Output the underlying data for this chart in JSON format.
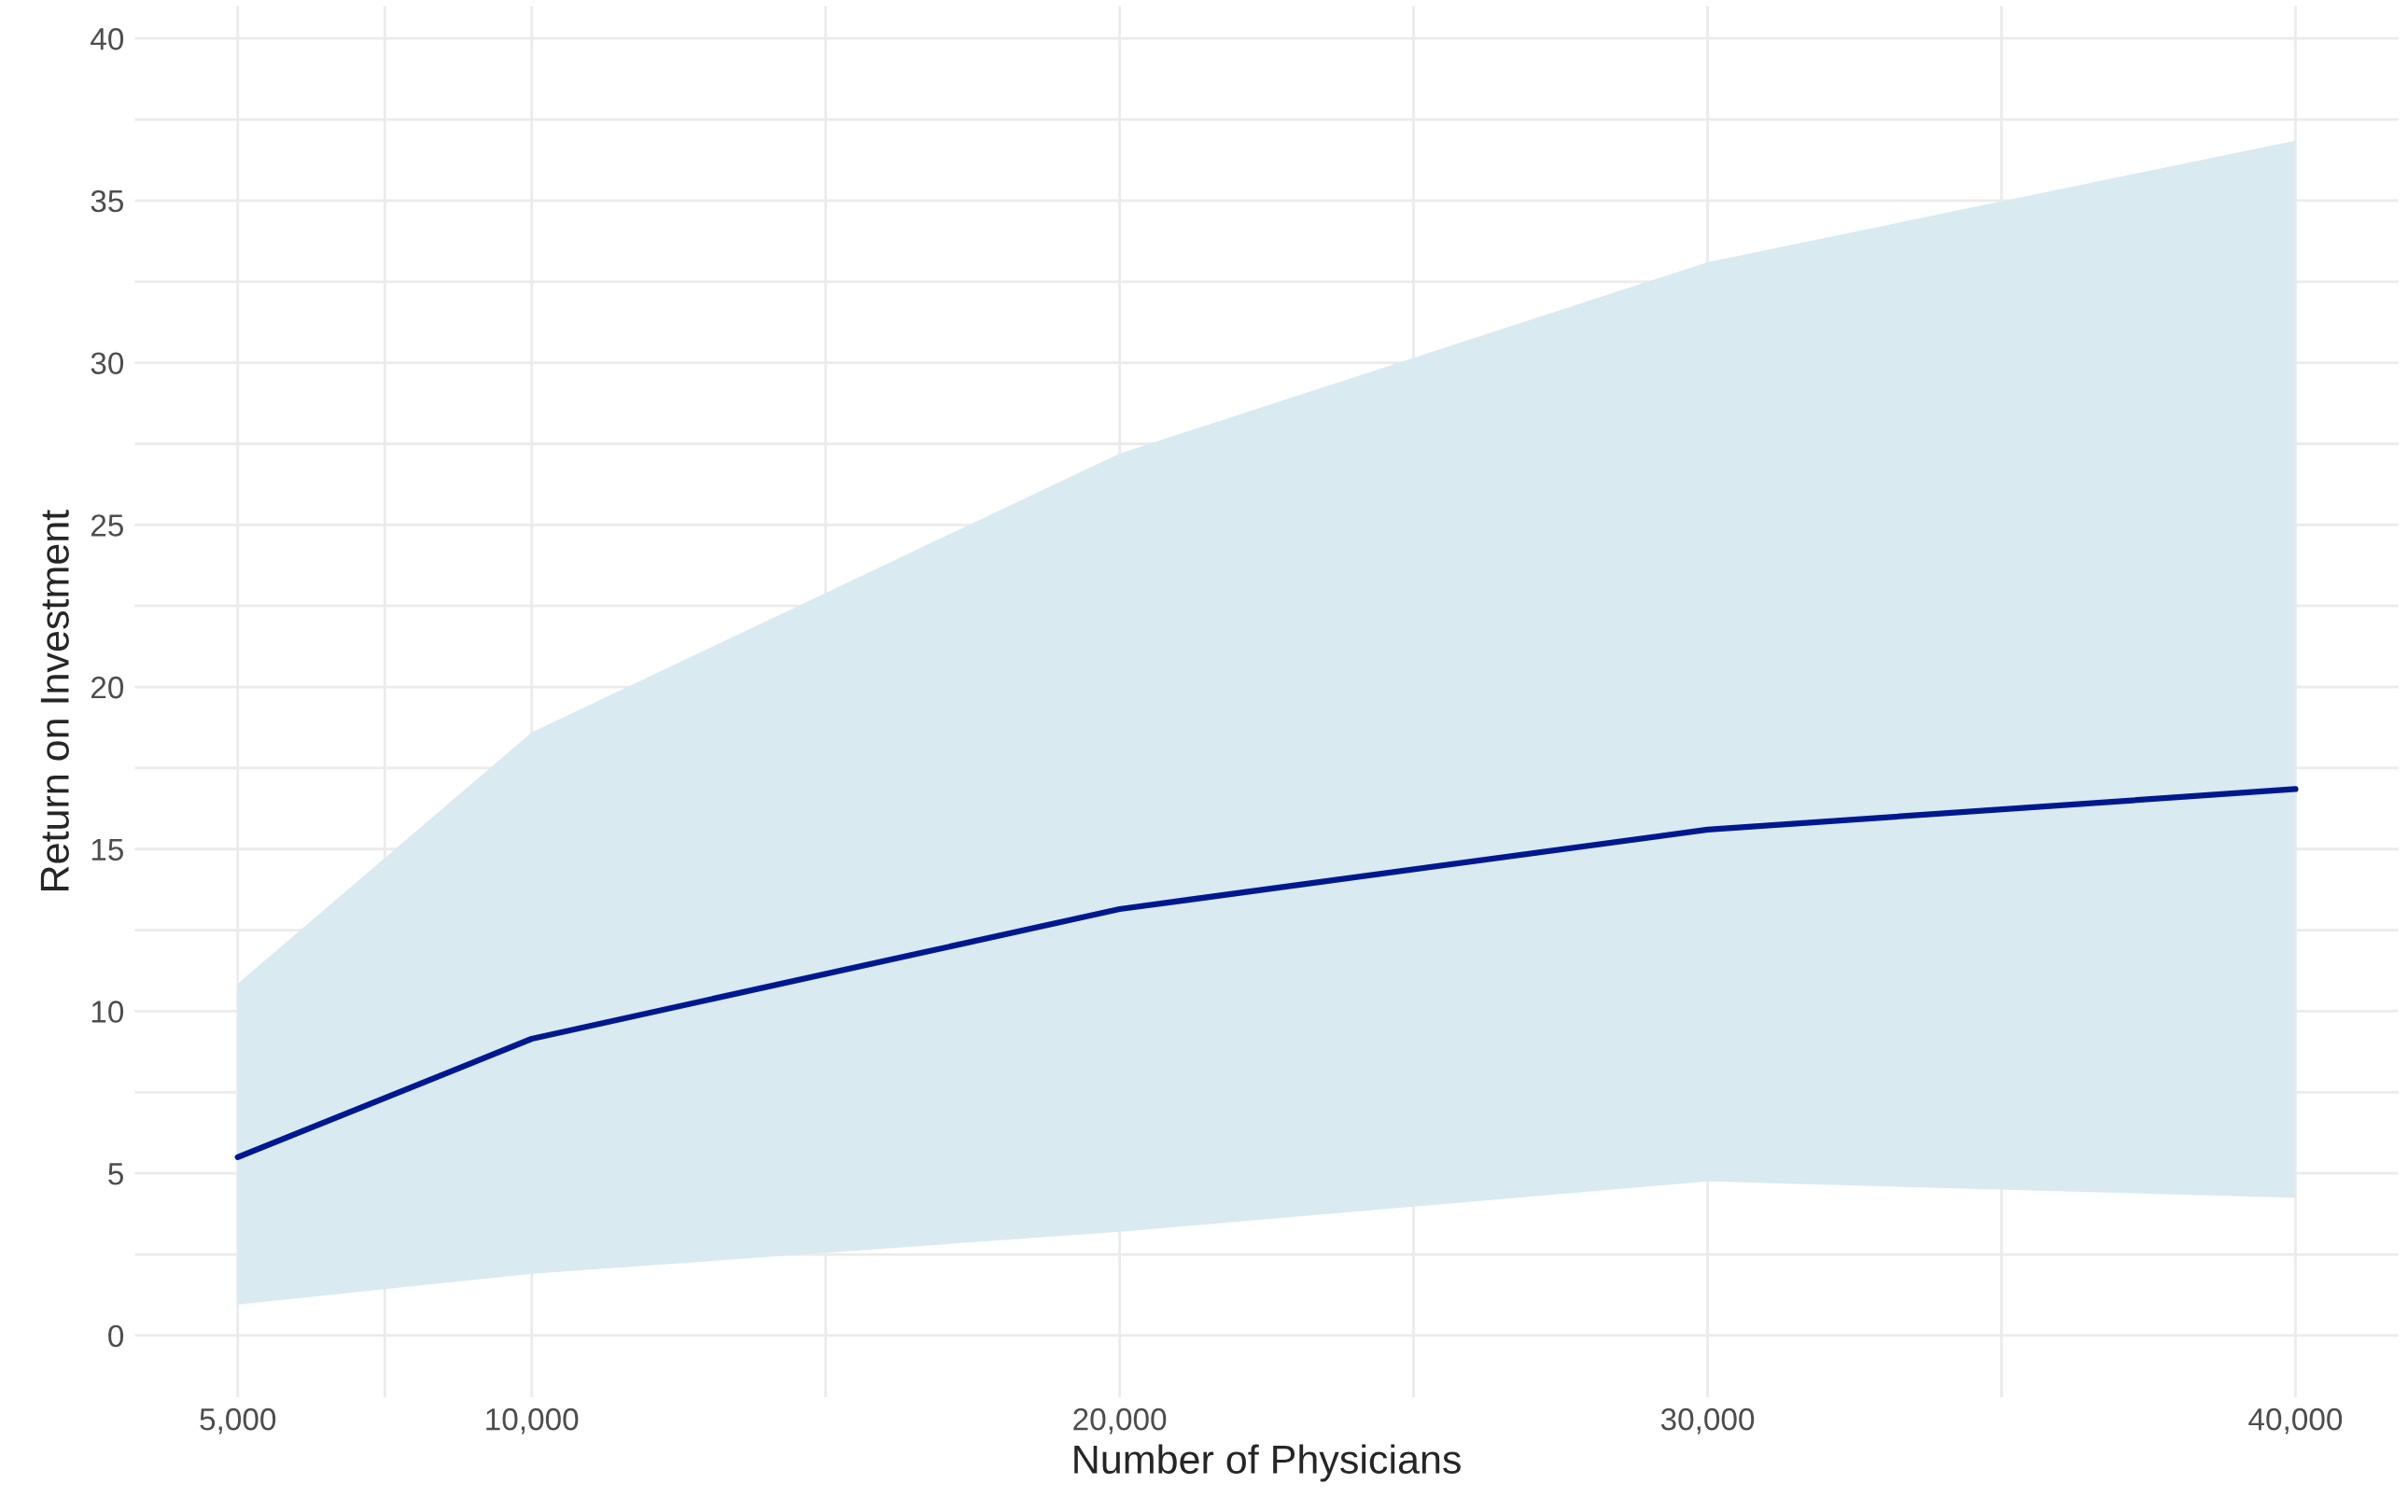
{
  "chart_data": {
    "type": "line",
    "xlabel": "Number of Physicians",
    "ylabel": "Return on Investment",
    "x": [
      5000,
      10000,
      20000,
      30000,
      40000
    ],
    "series": [
      {
        "color": "#00188f",
        "values": [
          5.5,
          9.15,
          13.15,
          15.6,
          16.85
        ],
        "lower": [
          0.95,
          1.9,
          3.2,
          4.75,
          4.25
        ],
        "upper": [
          10.85,
          18.6,
          27.2,
          33.1,
          36.85
        ]
      }
    ],
    "xlim": [
      3250,
      41750
    ],
    "ylim": [
      -1.9,
      41
    ],
    "xticks": [
      {
        "value": 5000,
        "label": "5,000"
      },
      {
        "value": 7500,
        "label": null
      },
      {
        "value": 10000,
        "label": "10,000"
      },
      {
        "value": 15000,
        "label": null
      },
      {
        "value": 20000,
        "label": "20,000"
      },
      {
        "value": 25000,
        "label": null
      },
      {
        "value": 30000,
        "label": "30,000"
      },
      {
        "value": 35000,
        "label": null
      },
      {
        "value": 40000,
        "label": "40,000"
      }
    ],
    "yticks": [
      0,
      {
        "value": 2.5,
        "label": null
      },
      5,
      {
        "value": 7.5,
        "label": null
      },
      10,
      {
        "value": 12.5,
        "label": null
      },
      15,
      {
        "value": 17.5,
        "label": null
      },
      20,
      {
        "value": 22.5,
        "label": null
      },
      25,
      {
        "value": 27.5,
        "label": null
      },
      30,
      {
        "value": 32.5,
        "label": null
      },
      35,
      {
        "value": 37.5,
        "label": null
      },
      40
    ],
    "grid": true,
    "line_style": "solid",
    "marker": "none"
  }
}
